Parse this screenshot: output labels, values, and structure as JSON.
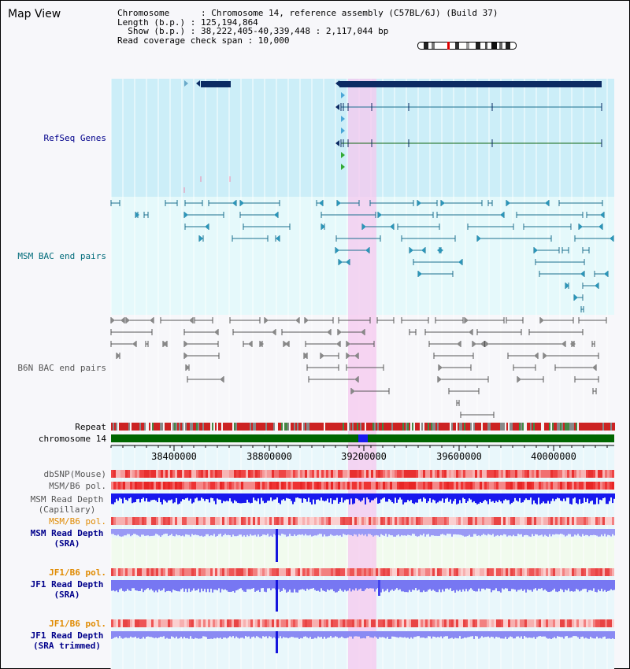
{
  "header": {
    "title": "Map View",
    "info_lines": [
      "Chromosome      : Chromosome 14, reference assembly (C57BL/6J) (Build 37)",
      "Length (b.p.) : 125,194,864",
      "  Show (b.p.) : 38,222,405-40,339,448 : 2,117,044 bp",
      "Read coverage check span : 10,000"
    ]
  },
  "tracks": {
    "refseq": "RefSeq Genes",
    "msm_bac": "MSM BAC end pairs",
    "b6n_bac": "B6N BAC end pairs",
    "repeat": "Repeat",
    "chromosome": "chromosome 14",
    "dbsnp": "dbSNP(Mouse)",
    "msm_b6_pol_1": "MSM/B6 pol.",
    "msm_read_depth_cap_1": "MSM Read Depth",
    "msm_read_depth_cap_2": "(Capillary)",
    "msm_b6_pol_2": "MSM/B6 pol.",
    "msm_read_depth_sra_1": "MSM Read Depth",
    "msm_read_depth_sra_2": "(SRA)",
    "jf1_b6_pol_1": "JF1/B6 pol.",
    "jf1_read_depth_sra_1": "JF1 Read Depth",
    "jf1_read_depth_sra_2": "(SRA)",
    "jf1_b6_pol_2": "JF1/B6 pol.",
    "jf1_read_depth_trim_1": "JF1 Read Depth",
    "jf1_read_depth_trim_2": "(SRA trimmed)"
  },
  "axis": {
    "ticks": [
      "38400000",
      "38800000",
      "39200000",
      "39600000",
      "40000000"
    ]
  },
  "colors": {
    "refseq_bg": "#cceef8",
    "msm_bg": "#e5f9fb",
    "highlight": "#f5d7f2",
    "gene_dark": "#0c2b63",
    "repeat_red": "#cc2222",
    "chrom_green": "#006600",
    "depth_blue": "#1818ee",
    "snp_red": "#ee3333"
  }
}
